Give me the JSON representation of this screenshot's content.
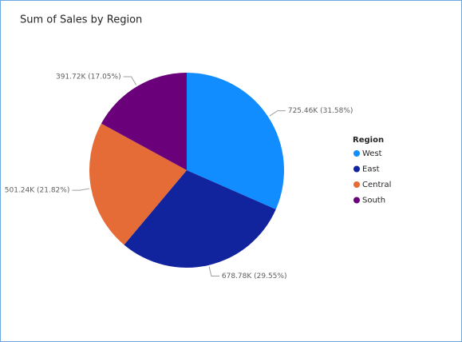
{
  "chart_data": {
    "type": "pie",
    "title": "Sum of Sales by Region",
    "legend_title": "Region",
    "categories": [
      "West",
      "East",
      "Central",
      "South"
    ],
    "values": [
      725.46,
      678.78,
      501.24,
      391.72
    ],
    "value_labels": [
      "725.46K (31.58%)",
      "678.78K (29.55%)",
      "501.24K (21.82%)",
      "391.72K (17.05%)"
    ],
    "colors": [
      "#118dff",
      "#12239e",
      "#e66c37",
      "#6b007b"
    ],
    "legend": "right"
  }
}
